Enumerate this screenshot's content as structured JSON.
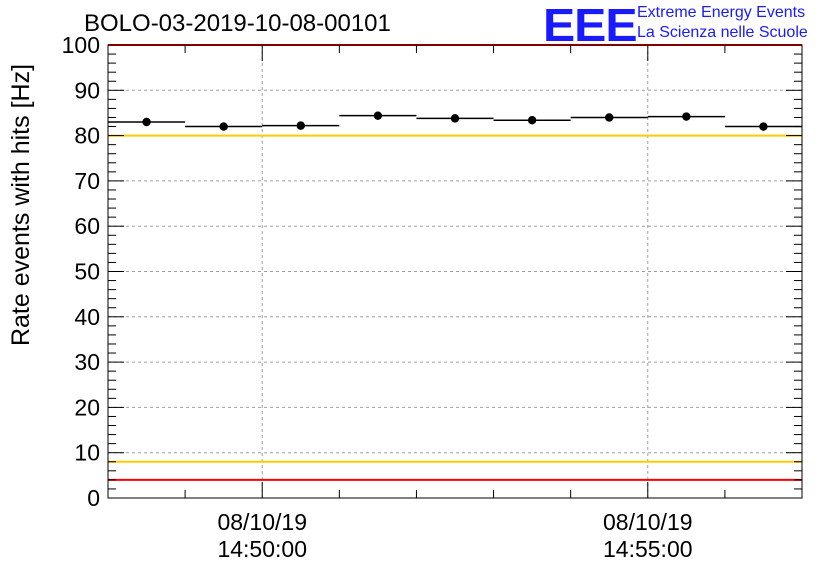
{
  "header": {
    "title": "BOLO-03-2019-10-08-00101"
  },
  "logo": {
    "mark": "EEE",
    "line1": "Extreme Energy Events",
    "line2": "La Scienza nelle Scuole"
  },
  "chart_data": {
    "type": "scatter",
    "title": "BOLO-03-2019-10-08-00101",
    "ylabel": "Rate events with hits [Hz]",
    "xlabel": "",
    "ylim": [
      0,
      100
    ],
    "yticks": [
      0,
      10,
      20,
      30,
      40,
      50,
      60,
      70,
      80,
      90,
      100
    ],
    "xlim_minutes": [
      -2.0,
      7.0
    ],
    "xticks": [
      {
        "x_minutes": 0,
        "date": "08/10/19",
        "time": "14:50:00"
      },
      {
        "x_minutes": 5,
        "date": "08/10/19",
        "time": "14:55:00"
      }
    ],
    "grid": true,
    "series": [
      {
        "x_minutes": [
          -1.5,
          -0.5,
          0.5,
          1.5,
          2.5,
          3.5,
          4.5,
          5.5,
          6.5
        ],
        "y": [
          83.0,
          82.0,
          82.2,
          84.4,
          83.8,
          83.4,
          84.0,
          84.2,
          82.0
        ],
        "bin_halfwidth_minutes": 0.5,
        "error": 0.9,
        "color": "#000000"
      }
    ],
    "reference_lines": [
      {
        "y": 100,
        "color": "#ff0000"
      },
      {
        "y": 80,
        "color": "#ffcc00"
      },
      {
        "y": 8,
        "color": "#ffcc00"
      },
      {
        "y": 4,
        "color": "#ff0000"
      }
    ]
  }
}
